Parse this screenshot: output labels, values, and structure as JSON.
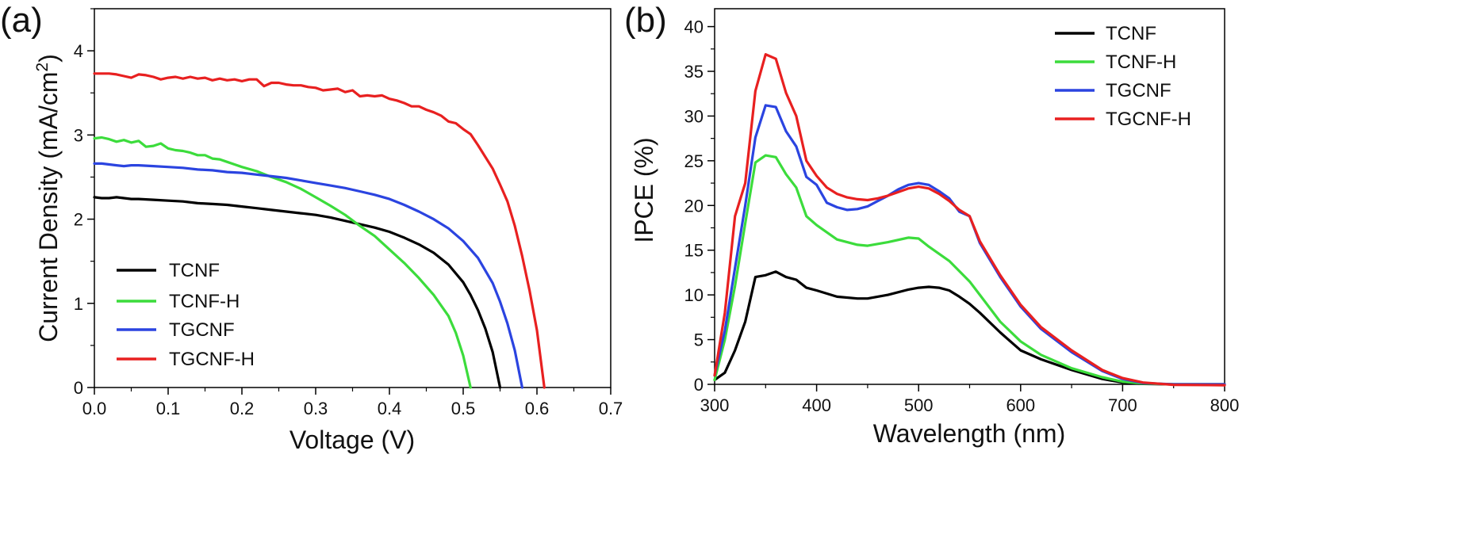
{
  "chart_data": [
    {
      "type": "line",
      "panel_label": "(a)",
      "xlabel": "Voltage (V)",
      "ylabel_main": "Current Density (mA/cm",
      "ylabel_sup": "2",
      "ylabel_end": ")",
      "xlim": [
        0.0,
        0.7
      ],
      "ylim": [
        0,
        4.5
      ],
      "xticks": [
        0.0,
        0.1,
        0.2,
        0.3,
        0.4,
        0.5,
        0.6,
        0.7
      ],
      "xtick_labels": [
        "0.0",
        "0.1",
        "0.2",
        "0.3",
        "0.4",
        "0.5",
        "0.6",
        "0.7"
      ],
      "yticks": [
        0,
        1,
        2,
        3,
        4
      ],
      "ytick_labels": [
        "0",
        "1",
        "2",
        "3",
        "4"
      ],
      "grid": false,
      "legend_position": "bottom-left",
      "series": [
        {
          "name": "TCNF",
          "color": "#000000",
          "x": [
            0.0,
            0.01,
            0.02,
            0.03,
            0.04,
            0.05,
            0.06,
            0.08,
            0.1,
            0.12,
            0.14,
            0.16,
            0.18,
            0.2,
            0.22,
            0.24,
            0.26,
            0.28,
            0.3,
            0.32,
            0.34,
            0.36,
            0.38,
            0.4,
            0.42,
            0.44,
            0.46,
            0.48,
            0.5,
            0.51,
            0.52,
            0.53,
            0.54,
            0.55
          ],
          "y": [
            2.26,
            2.25,
            2.25,
            2.26,
            2.25,
            2.24,
            2.24,
            2.23,
            2.22,
            2.21,
            2.19,
            2.18,
            2.17,
            2.15,
            2.13,
            2.11,
            2.09,
            2.07,
            2.05,
            2.02,
            1.98,
            1.94,
            1.9,
            1.85,
            1.78,
            1.7,
            1.6,
            1.46,
            1.25,
            1.1,
            0.92,
            0.7,
            0.42,
            0.0
          ]
        },
        {
          "name": "TCNF-H",
          "color": "#3cdc3c",
          "x": [
            0.0,
            0.01,
            0.02,
            0.03,
            0.04,
            0.05,
            0.06,
            0.07,
            0.08,
            0.09,
            0.1,
            0.11,
            0.12,
            0.13,
            0.14,
            0.15,
            0.16,
            0.17,
            0.18,
            0.19,
            0.2,
            0.22,
            0.24,
            0.26,
            0.28,
            0.3,
            0.32,
            0.34,
            0.36,
            0.38,
            0.4,
            0.42,
            0.44,
            0.46,
            0.48,
            0.49,
            0.5,
            0.51
          ],
          "y": [
            2.96,
            2.97,
            2.95,
            2.92,
            2.94,
            2.91,
            2.93,
            2.86,
            2.87,
            2.9,
            2.84,
            2.82,
            2.81,
            2.79,
            2.76,
            2.76,
            2.72,
            2.71,
            2.68,
            2.65,
            2.62,
            2.57,
            2.5,
            2.44,
            2.36,
            2.26,
            2.16,
            2.05,
            1.92,
            1.8,
            1.64,
            1.48,
            1.3,
            1.1,
            0.85,
            0.65,
            0.38,
            0.0
          ]
        },
        {
          "name": "TGCNF",
          "color": "#2b44e0",
          "x": [
            0.0,
            0.01,
            0.02,
            0.03,
            0.04,
            0.05,
            0.06,
            0.08,
            0.1,
            0.12,
            0.14,
            0.16,
            0.18,
            0.2,
            0.22,
            0.24,
            0.26,
            0.28,
            0.3,
            0.32,
            0.34,
            0.36,
            0.38,
            0.4,
            0.42,
            0.44,
            0.46,
            0.48,
            0.5,
            0.52,
            0.54,
            0.55,
            0.56,
            0.57,
            0.58
          ],
          "y": [
            2.66,
            2.66,
            2.65,
            2.64,
            2.63,
            2.64,
            2.64,
            2.63,
            2.62,
            2.61,
            2.59,
            2.58,
            2.56,
            2.55,
            2.53,
            2.51,
            2.49,
            2.46,
            2.43,
            2.4,
            2.37,
            2.33,
            2.29,
            2.24,
            2.17,
            2.09,
            2.0,
            1.89,
            1.74,
            1.54,
            1.24,
            1.02,
            0.76,
            0.44,
            0.0
          ]
        },
        {
          "name": "TGCNF-H",
          "color": "#e82020",
          "x": [
            0.0,
            0.01,
            0.02,
            0.03,
            0.04,
            0.05,
            0.06,
            0.07,
            0.08,
            0.09,
            0.1,
            0.11,
            0.12,
            0.13,
            0.14,
            0.15,
            0.16,
            0.17,
            0.18,
            0.19,
            0.2,
            0.21,
            0.22,
            0.23,
            0.24,
            0.25,
            0.26,
            0.27,
            0.28,
            0.29,
            0.3,
            0.31,
            0.32,
            0.33,
            0.34,
            0.35,
            0.36,
            0.37,
            0.38,
            0.39,
            0.4,
            0.41,
            0.42,
            0.43,
            0.44,
            0.45,
            0.46,
            0.47,
            0.48,
            0.49,
            0.5,
            0.51,
            0.52,
            0.53,
            0.54,
            0.55,
            0.56,
            0.57,
            0.58,
            0.59,
            0.6,
            0.61
          ],
          "y": [
            3.73,
            3.73,
            3.73,
            3.72,
            3.7,
            3.68,
            3.72,
            3.71,
            3.69,
            3.66,
            3.68,
            3.69,
            3.67,
            3.69,
            3.67,
            3.68,
            3.65,
            3.67,
            3.65,
            3.66,
            3.64,
            3.66,
            3.66,
            3.58,
            3.62,
            3.62,
            3.6,
            3.59,
            3.59,
            3.57,
            3.56,
            3.53,
            3.54,
            3.55,
            3.51,
            3.53,
            3.46,
            3.47,
            3.46,
            3.47,
            3.43,
            3.41,
            3.38,
            3.34,
            3.34,
            3.3,
            3.27,
            3.23,
            3.16,
            3.14,
            3.07,
            3.01,
            2.88,
            2.74,
            2.6,
            2.41,
            2.21,
            1.92,
            1.56,
            1.15,
            0.68,
            0.0
          ]
        }
      ]
    },
    {
      "type": "line",
      "panel_label": "(b)",
      "xlabel": "Wavelength (nm)",
      "ylabel": "IPCE (%)",
      "xlim": [
        300,
        800
      ],
      "ylim": [
        0,
        42
      ],
      "xticks": [
        300,
        400,
        500,
        600,
        700,
        800
      ],
      "xtick_labels": [
        "300",
        "400",
        "500",
        "600",
        "700",
        "800"
      ],
      "yticks": [
        0,
        5,
        10,
        15,
        20,
        25,
        30,
        35,
        40
      ],
      "ytick_labels": [
        "0",
        "5",
        "10",
        "15",
        "20",
        "25",
        "30",
        "35",
        "40"
      ],
      "grid": false,
      "legend_position": "top-right",
      "series": [
        {
          "name": "TCNF",
          "color": "#000000",
          "x": [
            300,
            310,
            320,
            330,
            340,
            350,
            360,
            370,
            380,
            390,
            400,
            420,
            440,
            450,
            470,
            490,
            500,
            510,
            520,
            530,
            540,
            550,
            560,
            580,
            600,
            620,
            650,
            680,
            700,
            720,
            750,
            800
          ],
          "y": [
            0.5,
            1.3,
            3.8,
            7.0,
            12.0,
            12.2,
            12.6,
            12.0,
            11.7,
            10.8,
            10.5,
            9.8,
            9.6,
            9.6,
            10.0,
            10.6,
            10.8,
            10.9,
            10.8,
            10.5,
            9.8,
            9.0,
            8.0,
            5.8,
            3.8,
            2.8,
            1.6,
            0.6,
            0.2,
            0.05,
            0.0,
            0.0
          ]
        },
        {
          "name": "TCNF-H",
          "color": "#3cdc3c",
          "x": [
            300,
            310,
            320,
            330,
            340,
            350,
            360,
            370,
            380,
            390,
            400,
            420,
            440,
            450,
            470,
            490,
            500,
            510,
            530,
            550,
            560,
            580,
            600,
            620,
            650,
            680,
            700,
            720,
            750,
            800
          ],
          "y": [
            0.5,
            5.0,
            11.0,
            18.0,
            24.8,
            25.6,
            25.4,
            23.5,
            22.0,
            18.8,
            17.8,
            16.2,
            15.6,
            15.5,
            15.9,
            16.4,
            16.3,
            15.4,
            13.8,
            11.5,
            10.0,
            7.0,
            4.8,
            3.3,
            1.8,
            0.8,
            0.3,
            0.1,
            0.0,
            0.0
          ]
        },
        {
          "name": "TGCNF",
          "color": "#2b44e0",
          "x": [
            300,
            310,
            320,
            330,
            340,
            350,
            360,
            370,
            380,
            390,
            400,
            410,
            420,
            430,
            440,
            450,
            460,
            470,
            480,
            490,
            500,
            510,
            520,
            530,
            540,
            550,
            560,
            580,
            600,
            620,
            650,
            680,
            700,
            720,
            750,
            800
          ],
          "y": [
            1.0,
            6.0,
            13.0,
            20.0,
            27.6,
            31.2,
            31.0,
            28.3,
            26.6,
            23.2,
            22.3,
            20.3,
            19.8,
            19.5,
            19.6,
            19.9,
            20.5,
            21.1,
            21.8,
            22.3,
            22.5,
            22.3,
            21.6,
            20.8,
            19.3,
            18.8,
            15.8,
            12.0,
            8.7,
            6.2,
            3.6,
            1.5,
            0.6,
            0.15,
            0.0,
            0.0
          ]
        },
        {
          "name": "TGCNF-H",
          "color": "#e82020",
          "x": [
            300,
            310,
            320,
            330,
            340,
            350,
            360,
            370,
            380,
            390,
            400,
            410,
            420,
            430,
            440,
            450,
            460,
            470,
            480,
            490,
            500,
            510,
            520,
            530,
            540,
            550,
            560,
            580,
            600,
            620,
            650,
            680,
            700,
            720,
            750,
            800
          ],
          "y": [
            1.0,
            8.0,
            18.8,
            22.5,
            32.8,
            36.9,
            36.4,
            32.6,
            30.0,
            25.0,
            23.3,
            22.0,
            21.3,
            20.9,
            20.7,
            20.6,
            20.8,
            21.1,
            21.5,
            21.9,
            22.1,
            21.9,
            21.3,
            20.5,
            19.5,
            18.8,
            16.0,
            12.2,
            8.9,
            6.4,
            3.8,
            1.6,
            0.7,
            0.2,
            -0.05,
            -0.1
          ]
        }
      ]
    }
  ]
}
